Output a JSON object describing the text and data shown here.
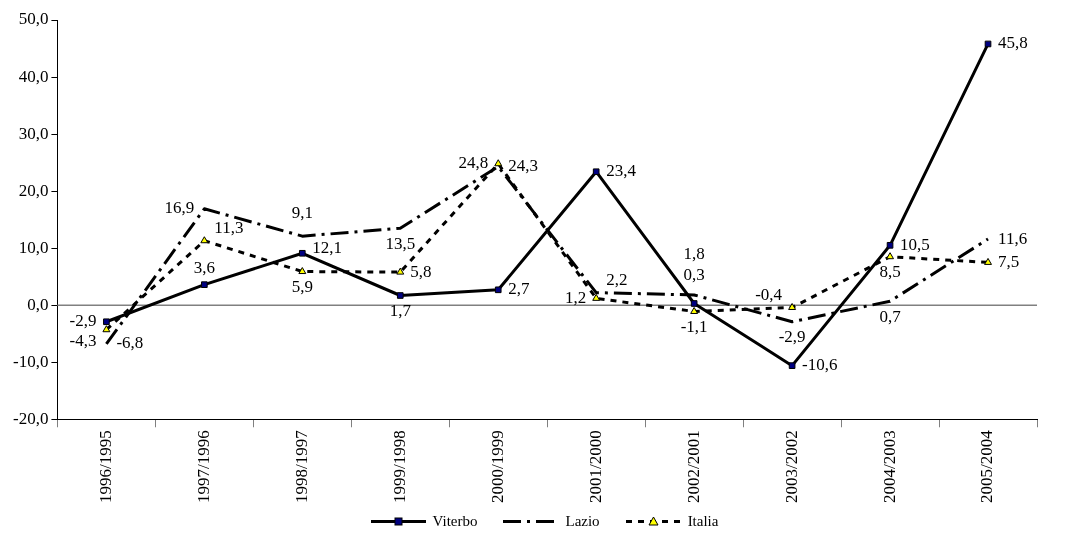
{
  "chart_data": {
    "type": "line",
    "categories": [
      "1996/1995",
      "1997/1996",
      "1998/1997",
      "1999/1998",
      "2000/1999",
      "2001/2000",
      "2002/2001",
      "2003/2002",
      "2004/2003",
      "2005/2004"
    ],
    "series": [
      {
        "name": "Viterbo",
        "color": "#000000",
        "marker": "square",
        "line_style": "solid",
        "values": [
          -2.9,
          3.6,
          9.1,
          1.7,
          2.7,
          23.4,
          0.3,
          -10.6,
          10.5,
          45.8
        ],
        "value_labels": [
          "-2,9",
          "3,6",
          "9,1",
          "1,7",
          "2,7",
          "23,4",
          "0,3",
          "-10,6",
          "10,5",
          "45,8"
        ]
      },
      {
        "name": "Lazio",
        "color": "#000000",
        "marker": "none",
        "line_style": "dashed",
        "values": [
          -6.8,
          16.9,
          12.1,
          13.5,
          24.3,
          2.2,
          1.8,
          -2.9,
          0.7,
          11.6
        ],
        "value_labels": [
          "-6,8",
          "16,9",
          "12,1",
          "13,5",
          "24,3",
          "2,2",
          "1,8",
          "-2,9",
          "0,7",
          "11,6"
        ]
      },
      {
        "name": "Italia",
        "color": "#000000",
        "marker": "triangle",
        "line_style": "dotted",
        "values": [
          -4.3,
          11.3,
          5.9,
          5.8,
          24.8,
          1.2,
          -1.1,
          -0.4,
          8.5,
          7.5
        ],
        "value_labels": [
          "-4,3",
          "11,3",
          "5,9",
          "5,8",
          "24,8",
          "1,2",
          "-1,1",
          "-0,4",
          "8,5",
          "7,5"
        ]
      }
    ],
    "ylim": [
      -20,
      50
    ],
    "yticks": [
      {
        "value": -20,
        "label": "-20,0"
      },
      {
        "value": -10,
        "label": "-10,0"
      },
      {
        "value": 0,
        "label": "0,0"
      },
      {
        "value": 10,
        "label": "10,0"
      },
      {
        "value": 20,
        "label": "20,0"
      },
      {
        "value": 30,
        "label": "30,0"
      },
      {
        "value": 40,
        "label": "40,0"
      },
      {
        "value": 50,
        "label": "50,0"
      }
    ],
    "ref_lines": [
      {
        "axis": "y",
        "value": 0,
        "color": "#808080"
      }
    ],
    "grid": false,
    "legend": "bottom"
  }
}
